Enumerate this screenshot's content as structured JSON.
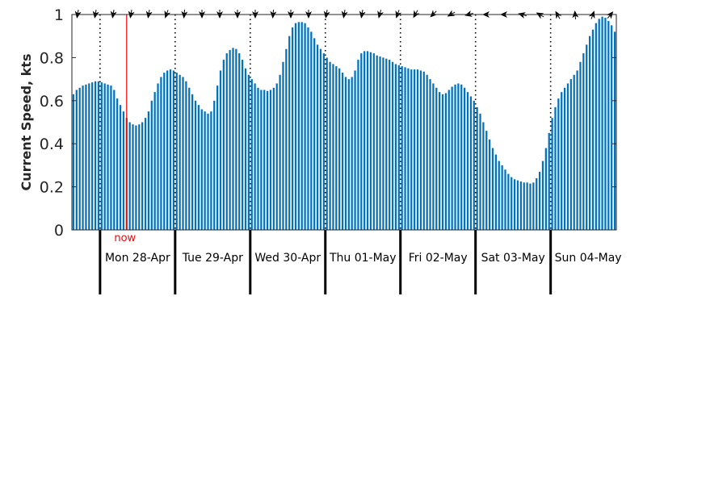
{
  "chart_data": {
    "type": "bar",
    "title": "",
    "xlabel": "",
    "ylabel": "Current Speed, kts",
    "ylim": [
      0,
      1
    ],
    "yticks": [
      "0",
      "0.2",
      "0.4",
      "0.6",
      "0.8",
      "1"
    ],
    "bar_color": "#0072bd",
    "grid": false,
    "legend": "none",
    "now_label": "now",
    "now_color": "#ff0000",
    "now_hour_offset": 17.5,
    "hours_before_first_day": 9,
    "hours_per_bar": 1,
    "days": [
      "Mon 28-Apr",
      "Tue 29-Apr",
      "Wed 30-Apr",
      "Thu 01-May",
      "Fri 02-May",
      "Sat 03-May",
      "Sun 04-May"
    ],
    "direction_arrows_deg": [
      190,
      190,
      190,
      190,
      190,
      200,
      185,
      180,
      180,
      180,
      180,
      185,
      180,
      180,
      190,
      190,
      190,
      195,
      200,
      210,
      225,
      240,
      255,
      270,
      270,
      285,
      300,
      330,
      355,
      20,
      40
    ],
    "values": [
      0.63,
      0.65,
      0.66,
      0.67,
      0.675,
      0.68,
      0.685,
      0.69,
      0.69,
      0.685,
      0.68,
      0.675,
      0.67,
      0.65,
      0.61,
      0.58,
      0.55,
      0.52,
      0.5,
      0.49,
      0.485,
      0.49,
      0.5,
      0.52,
      0.55,
      0.6,
      0.64,
      0.68,
      0.71,
      0.73,
      0.74,
      0.745,
      0.74,
      0.73,
      0.72,
      0.71,
      0.69,
      0.66,
      0.63,
      0.6,
      0.58,
      0.56,
      0.55,
      0.54,
      0.55,
      0.6,
      0.67,
      0.74,
      0.79,
      0.82,
      0.835,
      0.845,
      0.84,
      0.82,
      0.79,
      0.75,
      0.72,
      0.7,
      0.68,
      0.66,
      0.65,
      0.65,
      0.645,
      0.65,
      0.66,
      0.68,
      0.72,
      0.78,
      0.84,
      0.9,
      0.94,
      0.96,
      0.965,
      0.965,
      0.96,
      0.94,
      0.92,
      0.89,
      0.86,
      0.84,
      0.82,
      0.8,
      0.78,
      0.77,
      0.76,
      0.75,
      0.73,
      0.71,
      0.7,
      0.71,
      0.74,
      0.79,
      0.82,
      0.83,
      0.83,
      0.825,
      0.82,
      0.81,
      0.805,
      0.8,
      0.795,
      0.79,
      0.78,
      0.77,
      0.765,
      0.76,
      0.755,
      0.75,
      0.745,
      0.745,
      0.745,
      0.74,
      0.735,
      0.72,
      0.7,
      0.68,
      0.66,
      0.64,
      0.63,
      0.635,
      0.65,
      0.665,
      0.675,
      0.68,
      0.675,
      0.66,
      0.64,
      0.62,
      0.6,
      0.57,
      0.54,
      0.5,
      0.46,
      0.42,
      0.38,
      0.35,
      0.32,
      0.3,
      0.28,
      0.26,
      0.245,
      0.235,
      0.23,
      0.225,
      0.22,
      0.22,
      0.215,
      0.22,
      0.24,
      0.27,
      0.32,
      0.38,
      0.45,
      0.52,
      0.57,
      0.61,
      0.64,
      0.66,
      0.68,
      0.7,
      0.72,
      0.74,
      0.78,
      0.82,
      0.86,
      0.9,
      0.93,
      0.96,
      0.98,
      0.99,
      0.985,
      0.97,
      0.95,
      0.92
    ]
  }
}
